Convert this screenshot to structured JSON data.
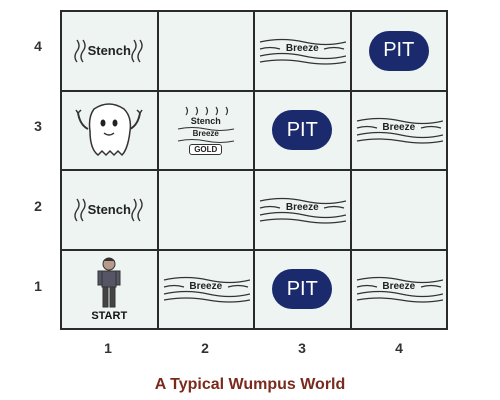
{
  "rows": [
    "4",
    "3",
    "2",
    "1"
  ],
  "cols": [
    "1",
    "2",
    "3",
    "4"
  ],
  "labels": {
    "stench": "Stench",
    "breeze": "Breeze",
    "pit": "PIT",
    "gold": "GOLD",
    "start": "START"
  },
  "caption": "A Typical Wumpus World",
  "colors": {
    "cell": "#eef4f2",
    "pit": "#1a2a6c",
    "caption": "#7a2a1c"
  },
  "cells": {
    "1-1": [
      "agent",
      "start"
    ],
    "2-1": [
      "breeze"
    ],
    "3-1": [
      "pit"
    ],
    "4-1": [
      "breeze"
    ],
    "1-2": [
      "stench"
    ],
    "2-2": [],
    "3-2": [
      "breeze"
    ],
    "4-2": [],
    "1-3": [
      "wumpus"
    ],
    "2-3": [
      "stench",
      "breeze",
      "gold"
    ],
    "3-3": [
      "pit"
    ],
    "4-3": [
      "breeze"
    ],
    "1-4": [
      "stench"
    ],
    "2-4": [],
    "3-4": [
      "breeze"
    ],
    "4-4": [
      "pit"
    ]
  }
}
